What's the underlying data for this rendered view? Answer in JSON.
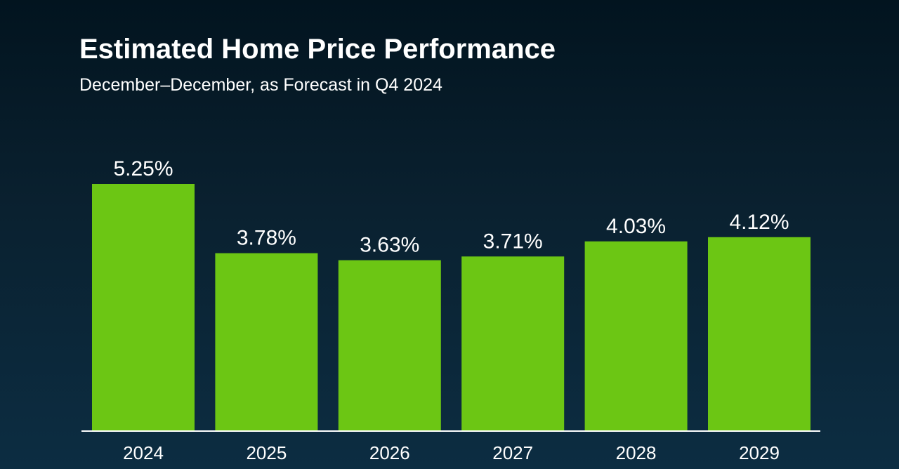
{
  "chart_data": {
    "type": "bar",
    "title": "Estimated Home Price Performance",
    "subtitle": "December–December, as Forecast in Q4 2024",
    "categories": [
      "2024",
      "2025",
      "2026",
      "2027",
      "2028",
      "2029"
    ],
    "values": [
      5.25,
      3.78,
      3.63,
      3.71,
      4.03,
      4.12
    ],
    "value_labels": [
      "5.25%",
      "3.78%",
      "3.63%",
      "3.71%",
      "4.03%",
      "4.12%"
    ],
    "ylim": [
      0,
      5.25
    ],
    "grid": false,
    "colors": {
      "bar": "#6cc614",
      "axis": "#ffffff",
      "text": "#ffffff"
    }
  }
}
